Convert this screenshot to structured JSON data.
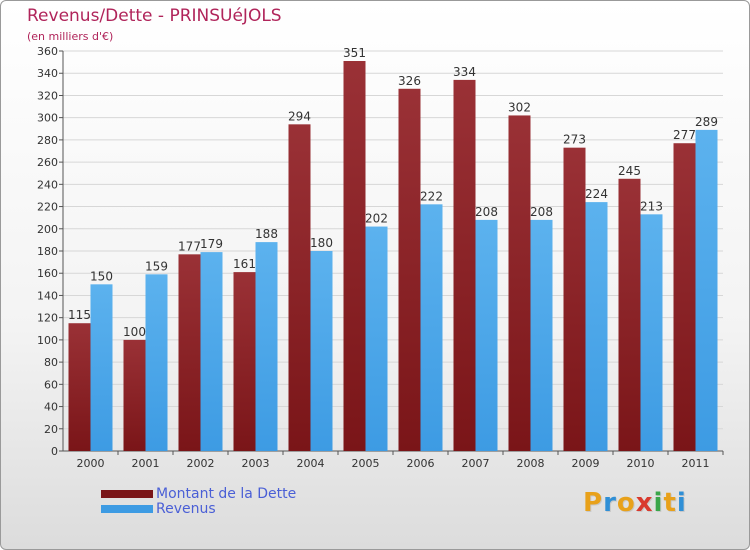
{
  "title": "Revenus/Dette - PRINSUéJOLS",
  "subtitle": "(en milliers d'€)",
  "colors": {
    "dette": "#7a1518",
    "dette_light": "#9a3136",
    "revenus": "#3d9be3",
    "revenus_light": "#5cb2ee",
    "title": "#b0245a",
    "grid": "#d7d7d7",
    "logo": [
      "#e8a11a",
      "#2f8fd6",
      "#e8a11a",
      "#d93a2e",
      "#3aa64a",
      "#e8a11a",
      "#2f8fd6"
    ]
  },
  "chart_data": {
    "type": "bar",
    "title": "Revenus/Dette - PRINSUéJOLS",
    "ylabel": "(en milliers d'€)",
    "xlabel": "",
    "ylim": [
      0,
      360
    ],
    "ytick_step": 20,
    "grid": true,
    "categories": [
      "2000",
      "2001",
      "2002",
      "2003",
      "2004",
      "2005",
      "2006",
      "2007",
      "2008",
      "2009",
      "2010",
      "2011"
    ],
    "series": [
      {
        "name": "Montant de la Dette",
        "values": [
          115,
          100,
          177,
          161,
          294,
          351,
          326,
          334,
          302,
          273,
          245,
          277
        ]
      },
      {
        "name": "Revenus",
        "values": [
          150,
          159,
          179,
          188,
          180,
          202,
          222,
          208,
          208,
          224,
          213,
          289
        ]
      }
    ],
    "legend_position": "bottom-left"
  },
  "legend": {
    "dette_label": "Montant de la Dette",
    "revenus_label": "Revenus"
  },
  "logo": {
    "letters": [
      "P",
      "r",
      "o",
      "x",
      "i",
      "t",
      "i"
    ]
  }
}
